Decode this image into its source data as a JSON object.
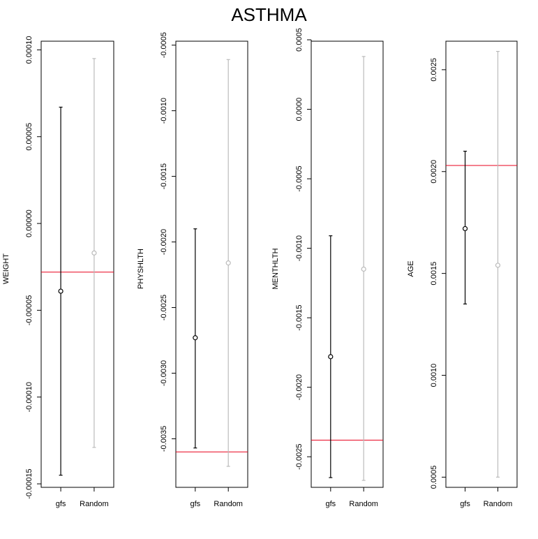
{
  "title": "ASTHMA",
  "colors": {
    "gfs": "#000000",
    "random": "#bbbbbb",
    "reference": "#e8001c"
  },
  "chart_data": [
    {
      "type": "errorbar",
      "ylabel": "WEIGHT",
      "categories": [
        "gfs",
        "Random"
      ],
      "ylim": [
        -0.000152,
        0.000105
      ],
      "yticks": [
        -0.00015,
        -0.0001,
        -5e-05,
        0.0,
        5e-05,
        0.0001
      ],
      "ytick_labels": [
        "-0.00015",
        "-0.00010",
        "-0.00005",
        "0.00000",
        "0.00005",
        "0.00010"
      ],
      "points": [
        {
          "category": "gfs",
          "estimate": -3.9e-05,
          "lower": -0.000145,
          "upper": 6.7e-05
        },
        {
          "category": "Random",
          "estimate": -1.7e-05,
          "lower": -0.000129,
          "upper": 9.5e-05
        }
      ],
      "reference_line": -2.8e-05
    },
    {
      "type": "errorbar",
      "ylabel": "PHYSHLTH",
      "categories": [
        "gfs",
        "Random"
      ],
      "ylim": [
        -0.00387,
        -0.00047
      ],
      "yticks": [
        -0.0035,
        -0.003,
        -0.0025,
        -0.002,
        -0.0015,
        -0.001,
        -0.0005
      ],
      "ytick_labels": [
        "-0.0035",
        "-0.0030",
        "-0.0025",
        "-0.0020",
        "-0.0015",
        "-0.0010",
        "-0.0005"
      ],
      "points": [
        {
          "category": "gfs",
          "estimate": -0.00273,
          "lower": -0.00357,
          "upper": -0.0019
        },
        {
          "category": "Random",
          "estimate": -0.00216,
          "lower": -0.00371,
          "upper": -0.00061
        }
      ],
      "reference_line": -0.0036
    },
    {
      "type": "errorbar",
      "ylabel": "MENTHLTH",
      "categories": [
        "gfs",
        "Random"
      ],
      "ylim": [
        -0.00272,
        0.00049
      ],
      "yticks": [
        -0.0025,
        -0.002,
        -0.0015,
        -0.001,
        -0.0005,
        0.0,
        0.0005
      ],
      "ytick_labels": [
        "-0.0025",
        "-0.0020",
        "-0.0015",
        "-0.0010",
        "-0.0005",
        "0.0000",
        "0.0005"
      ],
      "points": [
        {
          "category": "gfs",
          "estimate": -0.00178,
          "lower": -0.00265,
          "upper": -0.00091
        },
        {
          "category": "Random",
          "estimate": -0.00115,
          "lower": -0.00267,
          "upper": 0.00038
        }
      ],
      "reference_line": -0.00238
    },
    {
      "type": "errorbar",
      "ylabel": "AGE",
      "categories": [
        "gfs",
        "Random"
      ],
      "ylim": [
        0.00045,
        0.00264
      ],
      "yticks": [
        0.0005,
        0.001,
        0.0015,
        0.002,
        0.0025
      ],
      "ytick_labels": [
        "0.0005",
        "0.0010",
        "0.0015",
        "0.0020",
        "0.0025"
      ],
      "points": [
        {
          "category": "gfs",
          "estimate": 0.00172,
          "lower": 0.00135,
          "upper": 0.0021
        },
        {
          "category": "Random",
          "estimate": 0.00154,
          "lower": 0.0005,
          "upper": 0.00259
        }
      ],
      "reference_line": 0.00203
    }
  ]
}
